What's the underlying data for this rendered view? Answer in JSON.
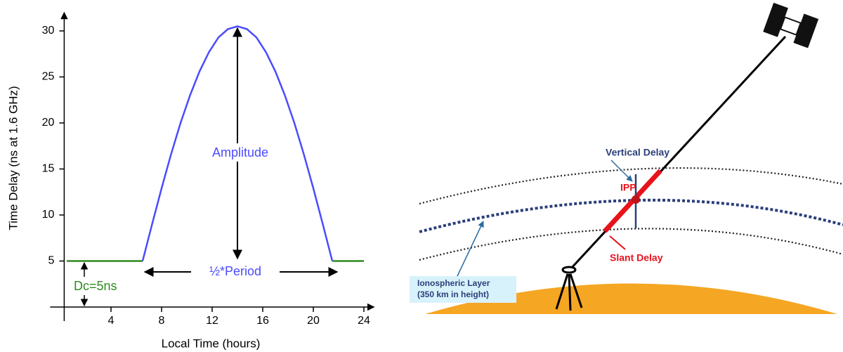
{
  "chart_data": {
    "type": "line",
    "x_label": "Local Time (hours)",
    "y_label": "Time Delay (ns at 1.6 GHz)",
    "x": [
      0.5,
      6.5,
      7.25,
      8,
      8.75,
      9.5,
      10.25,
      11,
      11.75,
      12.5,
      13.25,
      14,
      14.75,
      15.5,
      16.25,
      17,
      17.75,
      18.5,
      19.25,
      20,
      20.75,
      21.5,
      24
    ],
    "series": [
      {
        "color": "#2e8b1e",
        "values": [
          5,
          5,
          null,
          null,
          null,
          null,
          null,
          null,
          null,
          null,
          null,
          null,
          null,
          null,
          null,
          null,
          null,
          null,
          null,
          null,
          null,
          5,
          5
        ]
      },
      {
        "color": "#4b4bff",
        "values": [
          null,
          5,
          9,
          12.9,
          16.6,
          20,
          23,
          25.6,
          27.7,
          29.3,
          30.2,
          30.5,
          30.2,
          29.3,
          27.7,
          25.6,
          23,
          20,
          16.6,
          12.9,
          9,
          5,
          null
        ]
      }
    ],
    "xlim": [
      0.3,
      24.8
    ],
    "ylim": [
      0,
      32
    ],
    "xticks": [
      4,
      8,
      12,
      16,
      20,
      24
    ],
    "yticks": [
      5,
      10,
      15,
      20,
      25,
      30
    ],
    "annotations": {
      "amplitude": "Amplitude",
      "half_period": "½*Period",
      "dc": "Dc=5ns"
    }
  },
  "diagram": {
    "vertical_delay": "Vertical Delay",
    "ipp": "IPP",
    "slant_delay": "Slant Delay",
    "ionospheric_layer": [
      "Ionospheric Layer",
      "(350 km in height)"
    ]
  }
}
